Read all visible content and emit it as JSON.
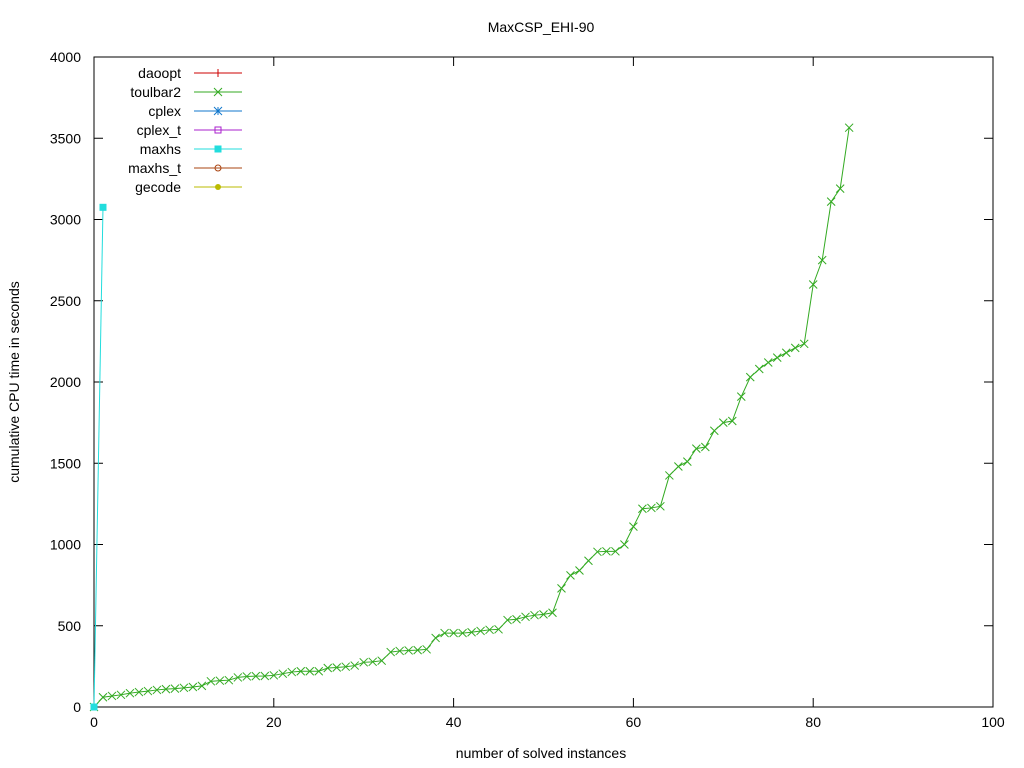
{
  "chart_data": {
    "type": "line",
    "title": "MaxCSP_EHI-90",
    "xlabel": "number of solved instances",
    "ylabel": "cumulative CPU time in seconds",
    "xlim": [
      0,
      100
    ],
    "ylim": [
      0,
      4000
    ],
    "xticks": [
      0,
      20,
      40,
      60,
      80,
      100
    ],
    "yticks": [
      0,
      500,
      1000,
      1500,
      2000,
      2500,
      3000,
      3500,
      4000
    ],
    "grid": false,
    "legend_position": "top-left",
    "series": [
      {
        "name": "daoopt",
        "color": "#cc0000",
        "marker": "plus",
        "x": [],
        "y": []
      },
      {
        "name": "toulbar2",
        "color": "#33aa22",
        "marker": "cross",
        "x": [
          0,
          1,
          2,
          3,
          4,
          5,
          6,
          7,
          8,
          9,
          10,
          11,
          12,
          13,
          14,
          15,
          16,
          17,
          18,
          19,
          20,
          21,
          22,
          23,
          24,
          25,
          26,
          27,
          28,
          29,
          30,
          31,
          32,
          33,
          34,
          35,
          36,
          37,
          38,
          39,
          40,
          41,
          42,
          43,
          44,
          45,
          46,
          47,
          48,
          49,
          50,
          51,
          52,
          53,
          54,
          55,
          56,
          57,
          58,
          59,
          60,
          61,
          62,
          63,
          64,
          65,
          66,
          67,
          68,
          69,
          70,
          71,
          72,
          73,
          74,
          75,
          76,
          77,
          78,
          79,
          80,
          81,
          82,
          83,
          84
        ],
        "y": [
          0,
          60,
          68,
          75,
          85,
          92,
          98,
          105,
          110,
          113,
          118,
          123,
          130,
          158,
          162,
          165,
          182,
          188,
          190,
          191,
          195,
          205,
          215,
          220,
          220,
          220,
          240,
          243,
          248,
          255,
          275,
          278,
          285,
          338,
          345,
          348,
          350,
          355,
          425,
          455,
          455,
          455,
          460,
          468,
          475,
          478,
          535,
          540,
          555,
          565,
          570,
          580,
          730,
          810,
          840,
          900,
          955,
          958,
          958,
          1000,
          1110,
          1220,
          1225,
          1235,
          1425,
          1480,
          1510,
          1590,
          1600,
          1700,
          1750,
          1760,
          1910,
          2030,
          2080,
          2120,
          2150,
          2180,
          2210,
          2235,
          2600,
          2750,
          3110,
          3190,
          3565
        ]
      },
      {
        "name": "cplex",
        "color": "#1177cc",
        "marker": "star",
        "x": [],
        "y": []
      },
      {
        "name": "cplex_t",
        "color": "#aa22cc",
        "marker": "square-open",
        "x": [],
        "y": []
      },
      {
        "name": "maxhs",
        "color": "#22dddd",
        "marker": "square-filled",
        "x": [
          0,
          1
        ],
        "y": [
          0,
          3075
        ]
      },
      {
        "name": "maxhs_t",
        "color": "#aa4411",
        "marker": "circle-open",
        "x": [],
        "y": []
      },
      {
        "name": "gecode",
        "color": "#bbbb00",
        "marker": "circle-filled",
        "x": [],
        "y": []
      }
    ]
  }
}
